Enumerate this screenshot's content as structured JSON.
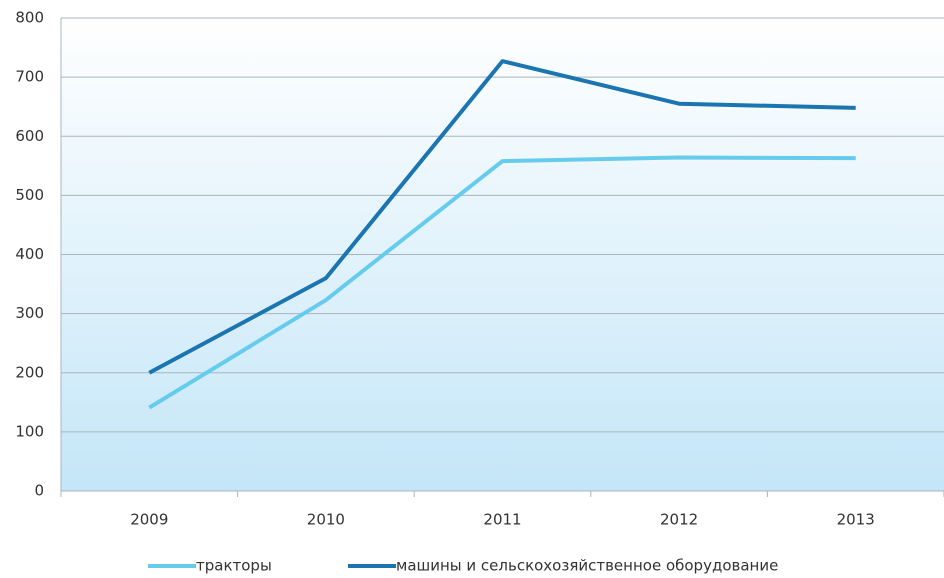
{
  "chart_data": {
    "type": "line",
    "categories": [
      "2009",
      "2010",
      "2011",
      "2012",
      "2013"
    ],
    "series": [
      {
        "name": "тракторы",
        "color": "#66ccee",
        "values": [
          141,
          323,
          558,
          564,
          563
        ]
      },
      {
        "name": "машины и сельскохозяйственное оборудование",
        "color": "#1a75b0",
        "values": [
          200,
          360,
          727,
          655,
          648
        ]
      }
    ],
    "ylim": [
      0,
      800
    ],
    "yticks": [
      0,
      100,
      200,
      300,
      400,
      500,
      600,
      700,
      800
    ],
    "grid": true,
    "legend": "bottom"
  }
}
